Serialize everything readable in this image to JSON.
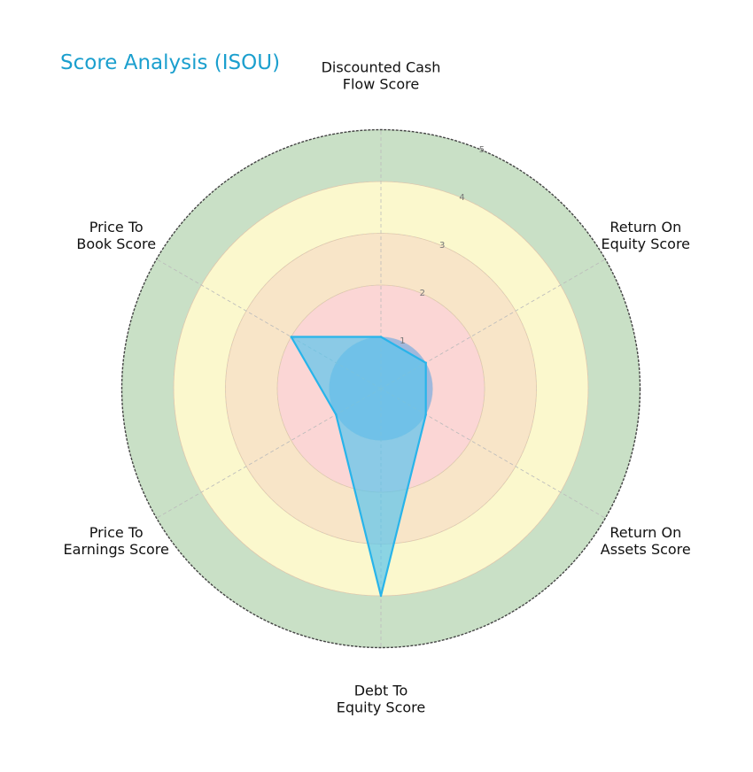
{
  "chart_data": {
    "type": "radar",
    "title": "Score Analysis (ISOU)",
    "axes": [
      "Discounted Cash Flow Score",
      "Return On Equity Score",
      "Return On Assets Score",
      "Debt To Equity Score",
      "Price To Earnings Score",
      "Price To Book Score"
    ],
    "axis_label_lines": [
      [
        "Discounted Cash",
        "Flow Score"
      ],
      [
        "Return On",
        "Equity Score"
      ],
      [
        "Return On",
        "Assets Score"
      ],
      [
        "Debt To",
        "Equity Score"
      ],
      [
        "Price To",
        "Earnings Score"
      ],
      [
        "Price To",
        "Book Score"
      ]
    ],
    "values": [
      1,
      1,
      1,
      4,
      1,
      2
    ],
    "rlim": [
      0,
      5
    ],
    "r_ticks": [
      "1",
      "2",
      "3",
      "4",
      "5"
    ],
    "bands": [
      {
        "from": 0,
        "to": 2,
        "color": "#fbd6d5"
      },
      {
        "from": 2,
        "to": 3,
        "color": "#f8e5c8"
      },
      {
        "from": 3,
        "to": 4,
        "color": "#fbf8cd"
      },
      {
        "from": 4,
        "to": 5,
        "color": "#c9e0c6"
      }
    ],
    "center_zone_color": "#8fb3dd",
    "series_color": "#28b4ea",
    "fill_color": "#5bc4ec",
    "grid": true
  }
}
